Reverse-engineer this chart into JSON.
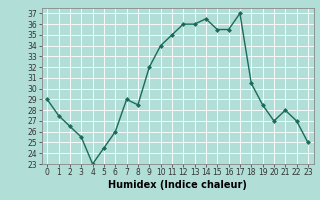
{
  "x": [
    0,
    1,
    2,
    3,
    4,
    5,
    6,
    7,
    8,
    9,
    10,
    11,
    12,
    13,
    14,
    15,
    16,
    17,
    18,
    19,
    20,
    21,
    22,
    23
  ],
  "y": [
    29,
    27.5,
    26.5,
    25.5,
    23,
    24.5,
    26,
    29,
    28.5,
    32,
    34,
    35,
    36,
    36,
    36.5,
    35.5,
    35.5,
    37,
    30.5,
    28.5,
    27,
    28,
    27,
    25
  ],
  "line_color": "#1a6b5a",
  "marker": "D",
  "marker_size": 2,
  "bg_color": "#b2ded8",
  "grid_color": "#ffffff",
  "xlabel": "Humidex (Indice chaleur)",
  "ylim": [
    23,
    37.5
  ],
  "yticks": [
    23,
    24,
    25,
    26,
    27,
    28,
    29,
    30,
    31,
    32,
    33,
    34,
    35,
    36,
    37
  ],
  "xticks": [
    0,
    1,
    2,
    3,
    4,
    5,
    6,
    7,
    8,
    9,
    10,
    11,
    12,
    13,
    14,
    15,
    16,
    17,
    18,
    19,
    20,
    21,
    22,
    23
  ],
  "tick_fontsize": 5.5,
  "xlabel_fontsize": 7,
  "line_width": 1.0
}
